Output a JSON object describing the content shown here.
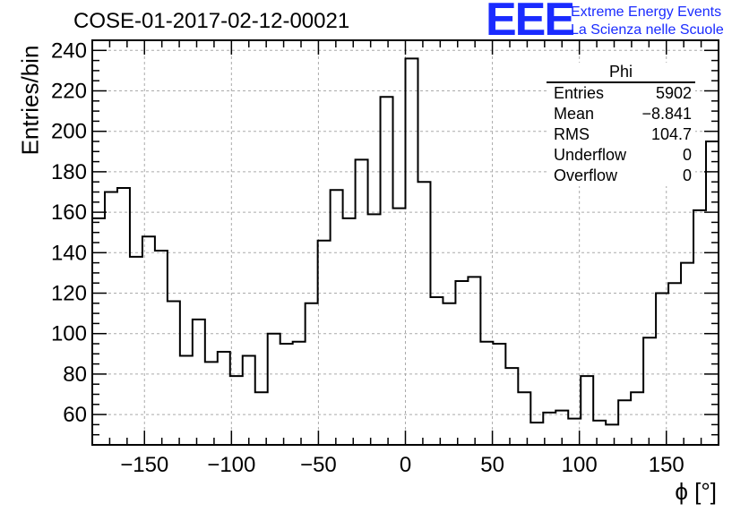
{
  "header": {
    "title": "COSE-01-2017-02-12-00021",
    "logo": "EEE",
    "logo_line1": "Extreme Energy Events",
    "logo_line2": "La Scienza nelle Scuole"
  },
  "stats_box": {
    "title": "Phi",
    "rows": [
      {
        "label": "Entries",
        "value": "5902"
      },
      {
        "label": "Mean",
        "value": "−8.841"
      },
      {
        "label": "RMS",
        "value": "104.7"
      },
      {
        "label": "Underflow",
        "value": "0"
      },
      {
        "label": "Overflow",
        "value": "0"
      }
    ]
  },
  "chart_data": {
    "type": "histogram",
    "xlabel": "ϕ [°]",
    "ylabel": "Entries/bin",
    "xlim": [
      -180,
      180
    ],
    "ylim": [
      45,
      245
    ],
    "bin_width": 7.2,
    "grid": true,
    "xticks": [
      -150,
      -100,
      -50,
      0,
      50,
      100,
      150
    ],
    "yticks": [
      60,
      80,
      100,
      120,
      140,
      160,
      180,
      200,
      220,
      240
    ],
    "values": [
      157,
      170,
      172,
      138,
      148,
      141,
      116,
      89,
      107,
      86,
      91,
      79,
      89,
      71,
      100,
      95,
      96,
      115,
      146,
      171,
      157,
      186,
      159,
      217,
      162,
      236,
      175,
      118,
      115,
      126,
      128,
      96,
      95,
      83,
      71,
      56,
      61,
      62,
      58,
      79,
      57,
      55,
      67,
      71,
      98,
      120,
      125,
      135,
      161,
      195
    ]
  }
}
